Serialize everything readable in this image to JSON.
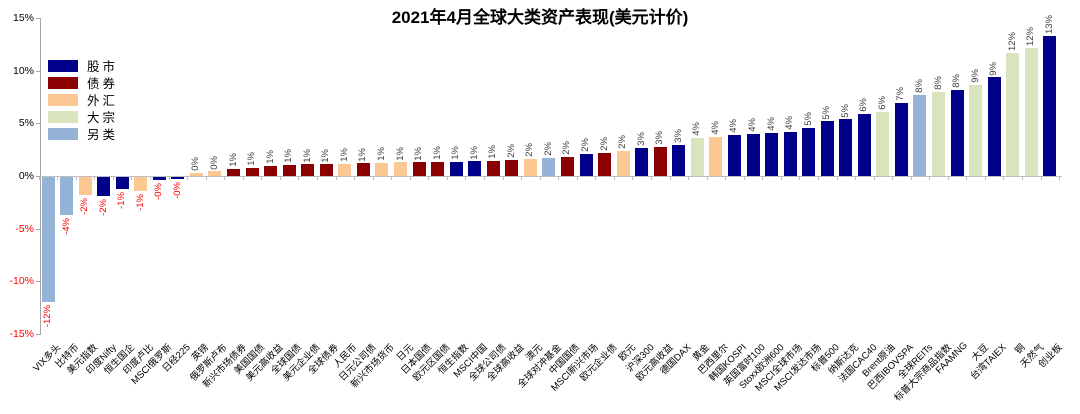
{
  "title": "2021年4月全球大类资产表现(美元计价)",
  "legend": [
    {
      "key": "stock",
      "label": "股市"
    },
    {
      "key": "bond",
      "label": "债券"
    },
    {
      "key": "fx",
      "label": "外汇"
    },
    {
      "key": "commodity",
      "label": "大宗"
    },
    {
      "key": "alt",
      "label": "另类"
    }
  ],
  "colors": {
    "stock": "#00008B",
    "bond": "#8B0000",
    "fx": "#FBC894",
    "commodity": "#D7E4BC",
    "alt": "#95B3D7",
    "negative_text": "#FF0000",
    "positive_text": "#3F3F3F",
    "axis": "#A6A6A6"
  },
  "y_axis": {
    "ticks": [
      "15%",
      "10%",
      "5%",
      "0%",
      "-5%",
      "-10%",
      "-15%"
    ],
    "max": 15,
    "min": -15,
    "step": 5
  },
  "chart_data": {
    "type": "bar",
    "title": "2021年4月全球大类资产表现(美元计价)",
    "ylim": [
      -15,
      15
    ],
    "grid": false,
    "legend_position": "upper-left",
    "categories": [
      "VIX多头",
      "比特币",
      "美元指数",
      "印度Nifty",
      "恒生国企",
      "印度卢比",
      "MSCI俄罗斯",
      "日经225",
      "英镑",
      "俄罗斯卢布",
      "新兴市场债券",
      "美国国债",
      "美元高收益",
      "全球国债",
      "美元企业债",
      "全球债券",
      "人民币",
      "日元公司债",
      "新兴市场货币",
      "日元",
      "日本国债",
      "欧元区国债",
      "恒生指数",
      "MSCI中国",
      "全球公司债",
      "全球高收益",
      "澳元",
      "全球对冲基金",
      "中国国债",
      "MSCI新兴市场",
      "欧元企业债",
      "欧元",
      "沪深300",
      "欧元高收益",
      "德国DAX",
      "黄金",
      "巴西里尔",
      "韩国KOSPI",
      "英国富时100",
      "Stoxx欧洲600",
      "MSCI全球市场",
      "MSCI发达市场",
      "标普500",
      "纳斯达克",
      "法国CAC40",
      "Brent原油",
      "巴西IBOVSPA",
      "全球REITs",
      "标普大宗商品指数",
      "FAAMNG",
      "大豆",
      "台湾TAIEX",
      "铜",
      "天然气",
      "创业板"
    ],
    "values": [
      -11.9,
      -3.6,
      -1.7,
      -1.8,
      -1.15,
      -1.3,
      -0.25,
      -0.2,
      0.3,
      0.45,
      0.7,
      0.8,
      1.0,
      1.05,
      1.1,
      1.1,
      1.15,
      1.2,
      1.25,
      1.3,
      1.3,
      1.35,
      1.35,
      1.4,
      1.45,
      1.55,
      1.6,
      1.7,
      1.8,
      2.1,
      2.2,
      2.4,
      2.7,
      2.8,
      3.0,
      3.6,
      3.7,
      3.9,
      4.0,
      4.1,
      4.2,
      4.6,
      5.2,
      5.4,
      5.9,
      6.1,
      7.0,
      7.7,
      8.0,
      8.2,
      8.7,
      9.4,
      11.7,
      12.2,
      13.3
    ],
    "value_labels": [
      "-12%",
      "-4%",
      "-2%",
      "-2%",
      "-1%",
      "-1%",
      "-0%",
      "-0%",
      "0%",
      "0%",
      "1%",
      "1%",
      "1%",
      "1%",
      "1%",
      "1%",
      "1%",
      "1%",
      "1%",
      "1%",
      "1%",
      "1%",
      "1%",
      "1%",
      "1%",
      "2%",
      "2%",
      "2%",
      "2%",
      "2%",
      "2%",
      "2%",
      "3%",
      "3%",
      "3%",
      "4%",
      "4%",
      "4%",
      "4%",
      "4%",
      "4%",
      "5%",
      "5%",
      "5%",
      "6%",
      "6%",
      "7%",
      "8%",
      "8%",
      "8%",
      "9%",
      "9%",
      "12%",
      "12%",
      "13%"
    ],
    "series_category": [
      "alt",
      "alt",
      "fx",
      "stock",
      "stock",
      "fx",
      "stock",
      "stock",
      "fx",
      "fx",
      "bond",
      "bond",
      "bond",
      "bond",
      "bond",
      "bond",
      "fx",
      "bond",
      "fx",
      "fx",
      "bond",
      "bond",
      "stock",
      "stock",
      "bond",
      "bond",
      "fx",
      "alt",
      "bond",
      "stock",
      "bond",
      "fx",
      "stock",
      "bond",
      "stock",
      "commodity",
      "fx",
      "stock",
      "stock",
      "stock",
      "stock",
      "stock",
      "stock",
      "stock",
      "stock",
      "commodity",
      "stock",
      "alt",
      "commodity",
      "stock",
      "commodity",
      "stock",
      "commodity",
      "commodity",
      "stock"
    ]
  }
}
